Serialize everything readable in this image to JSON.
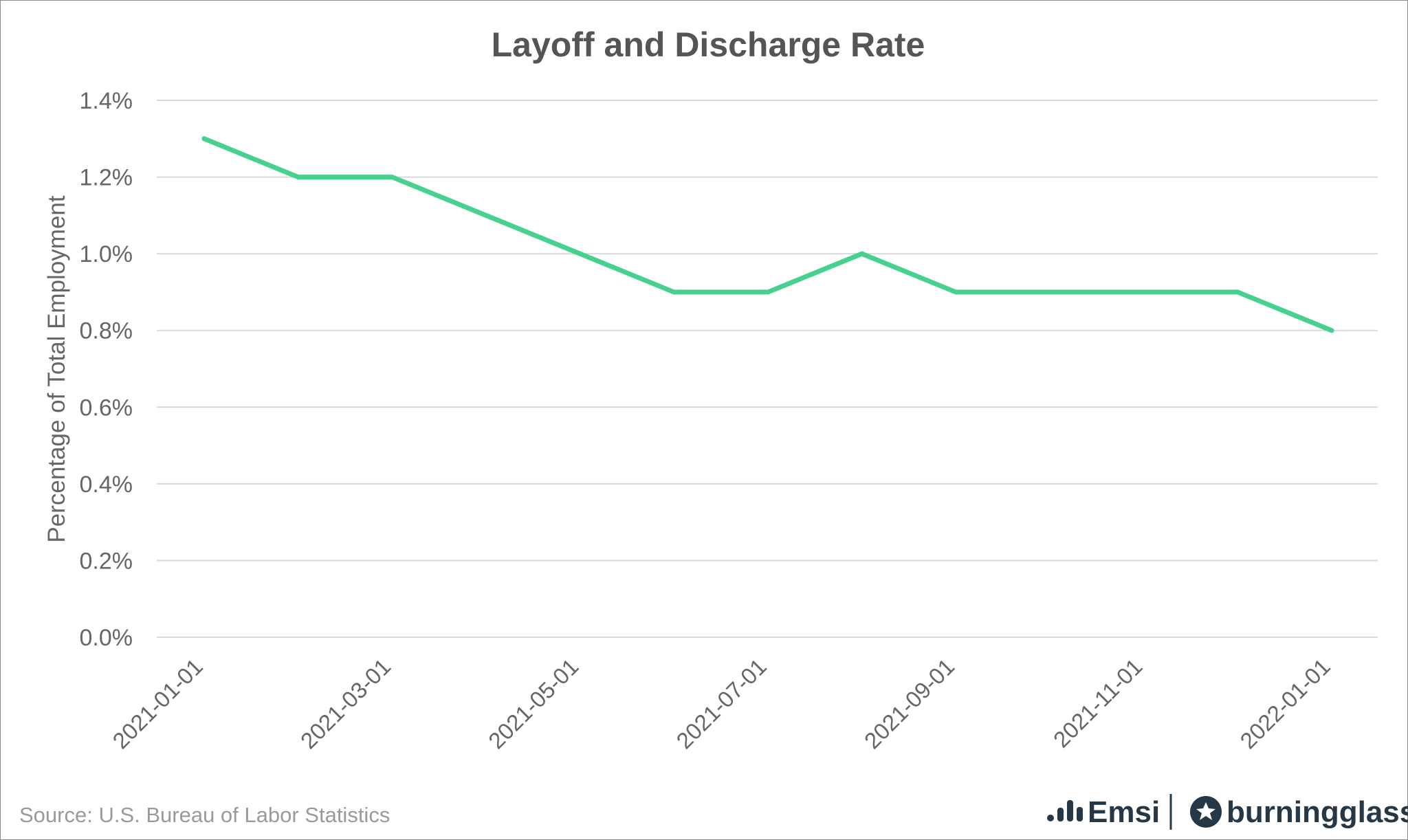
{
  "chart_data": {
    "type": "line",
    "title": "Layoff and Discharge Rate",
    "xlabel": "",
    "ylabel": "Percentage of Total Employment",
    "ylim": [
      0,
      1.4
    ],
    "y_ticks": [
      0,
      0.2,
      0.4,
      0.6,
      0.8,
      1.0,
      1.2,
      1.4
    ],
    "y_tick_labels": [
      "0.0%",
      "0.2%",
      "0.4%",
      "0.6%",
      "0.8%",
      "1.0%",
      "1.2%",
      "1.4%"
    ],
    "x": [
      "2021-01-01",
      "2021-02-01",
      "2021-03-01",
      "2021-04-01",
      "2021-05-01",
      "2021-06-01",
      "2021-07-01",
      "2021-08-01",
      "2021-09-01",
      "2021-10-01",
      "2021-11-01",
      "2021-12-01",
      "2022-01-01"
    ],
    "x_tick_labels": [
      "2021-01-01",
      "2021-03-01",
      "2021-05-01",
      "2021-07-01",
      "2021-09-01",
      "2021-11-01",
      "2022-01-01"
    ],
    "series": [
      {
        "name": "Layoff and Discharge Rate",
        "color": "#46d18f",
        "values": [
          1.3,
          1.2,
          1.2,
          1.1,
          1.0,
          0.9,
          0.9,
          1.0,
          0.9,
          0.9,
          0.9,
          0.9,
          0.8
        ]
      }
    ],
    "grid": true,
    "legend": "none"
  },
  "footer": {
    "source": "Source:  U.S. Bureau of Labor Statistics",
    "brand_emsi": "Emsi",
    "brand_burningglass": "burningglass"
  },
  "colors": {
    "line": "#46d18f",
    "brand": "#263746",
    "grid": "#d9d9d9",
    "text": "#666666"
  }
}
